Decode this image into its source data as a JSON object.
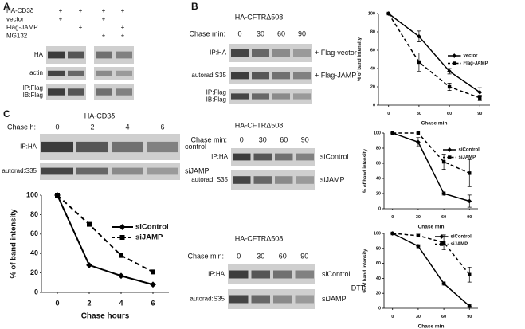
{
  "panel_a": {
    "label": "A",
    "rows": [
      {
        "label": "HA-CD3δ",
        "marks": [
          "+",
          "+",
          "+",
          "+"
        ]
      },
      {
        "label": "vector",
        "marks": [
          "+",
          null,
          "+",
          null
        ]
      },
      {
        "label": "Flag-JAMP",
        "marks": [
          null,
          "+",
          null,
          "+"
        ]
      },
      {
        "label": "MG132",
        "marks": [
          null,
          null,
          "+",
          "+"
        ]
      }
    ],
    "blots": [
      [
        "HA"
      ],
      [
        "actin"
      ],
      [
        "IP:Flag",
        "IB:Flag"
      ]
    ]
  },
  "panel_b": {
    "label": "B",
    "blots": [
      {
        "title": "HA-CFTRΔ508",
        "chase_label": "Chase min:",
        "chase": [
          0,
          30,
          60,
          90
        ],
        "rows": [
          [
            "IP:HA"
          ],
          [
            "autorad:S35"
          ],
          [
            "IP:Flag",
            "IB:Flag"
          ]
        ],
        "side": [
          "+ Flag-vector",
          "+ Flag-JAMP"
        ]
      },
      {
        "title": "HA-CFTRΔ508",
        "chase_label": "Chase min:",
        "chase": [
          0,
          30,
          60,
          90
        ],
        "rows": [
          [
            "IP:HA"
          ],
          [
            "autorad: S35"
          ]
        ],
        "side": [
          "siControl",
          "siJAMP"
        ]
      },
      {
        "title": "HA-CFTRΔ508",
        "chase_label": "Chase min:",
        "chase": [
          0,
          30,
          60,
          90
        ],
        "rows": [
          [
            "IP:HA"
          ],
          [
            "autorad:S35"
          ]
        ],
        "side": [
          "siControl",
          "siJAMP"
        ],
        "note": "+ DTT"
      }
    ]
  },
  "panel_c": {
    "label": "C",
    "title": "HA-CD3δ",
    "chase_label": "Chase h:",
    "chase": [
      0,
      2,
      4,
      6
    ],
    "rows": [
      [
        "IP:HA"
      ],
      [
        "autorad:S35"
      ]
    ],
    "side": [
      "control",
      "siJAMP"
    ]
  },
  "chart_data": [
    {
      "type": "line",
      "x_label": "Chase min",
      "y_label": "% of band intensity",
      "x": [
        0,
        30,
        60,
        90
      ],
      "xlim": [
        -10,
        100
      ],
      "xticks": [
        0,
        30,
        60,
        90
      ],
      "ylim": [
        0,
        100
      ],
      "yticks": [
        0,
        20,
        40,
        60,
        80,
        100
      ],
      "legend": "right",
      "series": [
        {
          "name": "vector",
          "color": "#000000",
          "dashed": false,
          "marker": "diamond",
          "values": [
            100,
            75,
            37,
            14
          ],
          "errors": [
            0,
            6,
            3,
            5
          ]
        },
        {
          "name": "Flag-JAMP",
          "color": "#000000",
          "dashed": true,
          "marker": "square",
          "values": [
            100,
            47,
            20,
            8
          ],
          "errors": [
            0,
            10,
            4,
            3
          ]
        }
      ]
    },
    {
      "type": "line",
      "x_label": "Chase min",
      "y_label": "% of band intensity",
      "x": [
        0,
        30,
        60,
        90
      ],
      "xlim": [
        -10,
        100
      ],
      "xticks": [
        0,
        30,
        60,
        90
      ],
      "ylim": [
        0,
        100
      ],
      "yticks": [
        0,
        20,
        40,
        60,
        80,
        100
      ],
      "legend": "right",
      "series": [
        {
          "name": "siControl",
          "color": "#000000",
          "dashed": false,
          "marker": "diamond",
          "values": [
            100,
            88,
            20,
            10
          ],
          "errors": [
            0,
            6,
            2,
            8
          ]
        },
        {
          "name": "siJAMP",
          "color": "#000000",
          "dashed": true,
          "marker": "square",
          "values": [
            100,
            100,
            62,
            47
          ],
          "errors": [
            0,
            0,
            10,
            18
          ]
        }
      ]
    },
    {
      "type": "line",
      "x_label": "Chase min",
      "y_label": "% of band intensity",
      "x": [
        0,
        30,
        60,
        90
      ],
      "xlim": [
        -10,
        100
      ],
      "xticks": [
        0,
        30,
        60,
        90
      ],
      "ylim": [
        0,
        100
      ],
      "yticks": [
        0,
        20,
        40,
        60,
        80,
        100
      ],
      "legend": "right",
      "series": [
        {
          "name": "siControl",
          "color": "#000000",
          "dashed": false,
          "marker": "diamond",
          "values": [
            100,
            83,
            33,
            3
          ],
          "errors": [
            0,
            2,
            2,
            2
          ]
        },
        {
          "name": "siJAMP",
          "color": "#000000",
          "dashed": true,
          "marker": "square",
          "values": [
            100,
            97,
            88,
            45
          ],
          "errors": [
            0,
            2,
            10,
            10
          ]
        }
      ]
    },
    {
      "type": "line",
      "x_label": "Chase hours",
      "y_label": "% of band intensity",
      "x": [
        0,
        2,
        4,
        6
      ],
      "xlim": [
        -1,
        7
      ],
      "xticks": [
        0,
        2,
        4,
        6
      ],
      "ylim": [
        0,
        100
      ],
      "yticks": [
        0,
        20,
        40,
        60,
        80,
        100
      ],
      "legend": "right",
      "series": [
        {
          "name": "siControl",
          "color": "#000000",
          "dashed": false,
          "marker": "diamond",
          "values": [
            100,
            28,
            17,
            8
          ]
        },
        {
          "name": "siJAMP",
          "color": "#000000",
          "dashed": true,
          "marker": "square",
          "values": [
            100,
            70,
            38,
            21
          ]
        }
      ]
    }
  ]
}
